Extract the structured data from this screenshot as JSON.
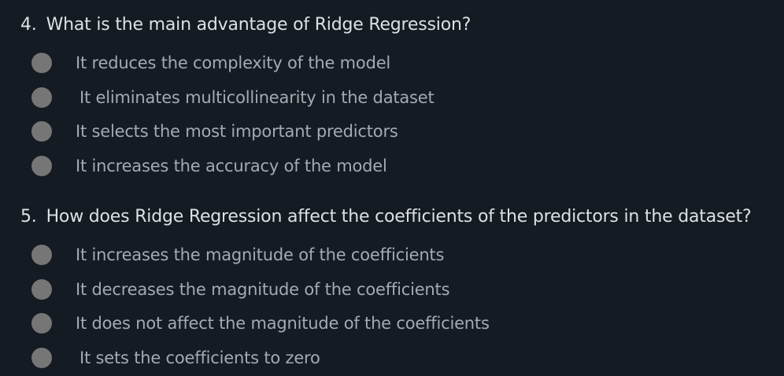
{
  "questions": [
    {
      "number": "4.",
      "text": "What is the main advantage of Ridge Regression?",
      "options": [
        "It reduces the complexity of the model",
        "It eliminates multicollinearity in the dataset",
        "It selects the most important predictors",
        "It increases the accuracy of the model"
      ]
    },
    {
      "number": "5.",
      "text": "How does Ridge Regression affect the coefficients of the predictors in the dataset?",
      "options": [
        "It increases the magnitude of the coefficients",
        "It decreases the magnitude of the coefficients",
        "It does not affect the magnitude of the coefficients",
        "It sets the coefficients to zero"
      ]
    }
  ],
  "colors": {
    "background": "#151b22",
    "question_text": "#dce1e6",
    "option_text": "#a3aab2",
    "radio_fill": "#767676"
  }
}
